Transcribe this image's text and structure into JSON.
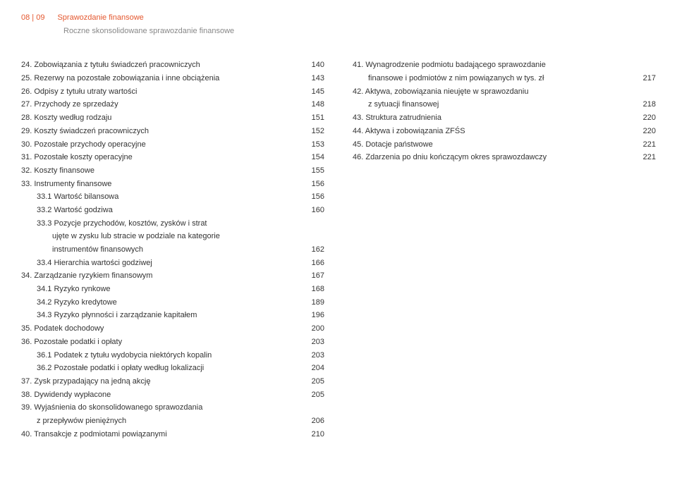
{
  "header": {
    "page_num": "08 | 09",
    "title": "Sprawozdanie finansowe",
    "subtitle": "Roczne skonsolidowane sprawozdanie finansowe"
  },
  "left": [
    {
      "label": "24. Zobowiązania z tytułu świadczeń pracowniczych",
      "page": "140",
      "indent": 0
    },
    {
      "label": "25. Rezerwy na pozostałe zobowiązania i inne obciążenia",
      "page": "143",
      "indent": 0
    },
    {
      "label": "26. Odpisy z tytułu utraty wartości",
      "page": "145",
      "indent": 0
    },
    {
      "label": "27. Przychody ze sprzedaży",
      "page": "148",
      "indent": 0
    },
    {
      "label": "28. Koszty według rodzaju",
      "page": "151",
      "indent": 0
    },
    {
      "label": "29. Koszty świadczeń pracowniczych",
      "page": "152",
      "indent": 0
    },
    {
      "label": "30. Pozostałe przychody operacyjne",
      "page": "153",
      "indent": 0
    },
    {
      "label": "31. Pozostałe koszty operacyjne",
      "page": "154",
      "indent": 0
    },
    {
      "label": "32. Koszty finansowe",
      "page": "155",
      "indent": 0
    },
    {
      "label": "33. Instrumenty finansowe",
      "page": "156",
      "indent": 0
    },
    {
      "label": "33.1 Wartość bilansowa",
      "page": "156",
      "indent": 1
    },
    {
      "label": "33.2 Wartość godziwa",
      "page": "160",
      "indent": 1
    },
    {
      "label": "33.3 Pozycje przychodów, kosztów, zysków i strat",
      "page": "",
      "indent": 1
    },
    {
      "label": "ujęte w zysku lub stracie w podziale na kategorie",
      "page": "",
      "indent": 2
    },
    {
      "label": "instrumentów finansowych",
      "page": "162",
      "indent": 2
    },
    {
      "label": "33.4 Hierarchia wartości godziwej",
      "page": "166",
      "indent": 1
    },
    {
      "label": "34. Zarządzanie ryzykiem finansowym",
      "page": "167",
      "indent": 0
    },
    {
      "label": "34.1 Ryzyko rynkowe",
      "page": "168",
      "indent": 1
    },
    {
      "label": "34.2 Ryzyko kredytowe",
      "page": "189",
      "indent": 1
    },
    {
      "label": "34.3 Ryzyko płynności i zarządzanie kapitałem",
      "page": "196",
      "indent": 1
    },
    {
      "label": "35. Podatek dochodowy",
      "page": "200",
      "indent": 0
    },
    {
      "label": "36. Pozostałe podatki i opłaty",
      "page": "203",
      "indent": 0
    },
    {
      "label": "36.1 Podatek z tytułu wydobycia niektórych kopalin",
      "page": "203",
      "indent": 1
    },
    {
      "label": "36.2 Pozostałe podatki i opłaty według lokalizacji",
      "page": "204",
      "indent": 1
    },
    {
      "label": "37. Zysk przypadający na jedną akcję",
      "page": "205",
      "indent": 0
    },
    {
      "label": "38. Dywidendy wypłacone",
      "page": "205",
      "indent": 0
    },
    {
      "label": "39. Wyjaśnienia do skonsolidowanego sprawozdania",
      "page": "",
      "indent": 0
    },
    {
      "label": "z przepływów pieniężnych",
      "page": "206",
      "indent": 1
    },
    {
      "label": "40. Transakcje z podmiotami powiązanymi",
      "page": "210",
      "indent": 0
    }
  ],
  "right": [
    {
      "label": "41. Wynagrodzenie podmiotu badającego sprawozdanie",
      "page": "",
      "indent": 0
    },
    {
      "label": "finansowe i podmiotów z nim powiązanych w tys. zł",
      "page": "217",
      "indent": 1
    },
    {
      "label": "42. Aktywa, zobowiązania nieujęte w sprawozdaniu",
      "page": "",
      "indent": 0
    },
    {
      "label": "z sytuacji finansowej",
      "page": "218",
      "indent": 1
    },
    {
      "label": "43. Struktura zatrudnienia",
      "page": "220",
      "indent": 0
    },
    {
      "label": "44. Aktywa i zobowiązania ZFŚS",
      "page": "220",
      "indent": 0
    },
    {
      "label": "45. Dotacje państwowe",
      "page": "221",
      "indent": 0
    },
    {
      "label": "46. Zdarzenia po dniu kończącym okres sprawozdawczy",
      "page": "221",
      "indent": 0
    }
  ]
}
